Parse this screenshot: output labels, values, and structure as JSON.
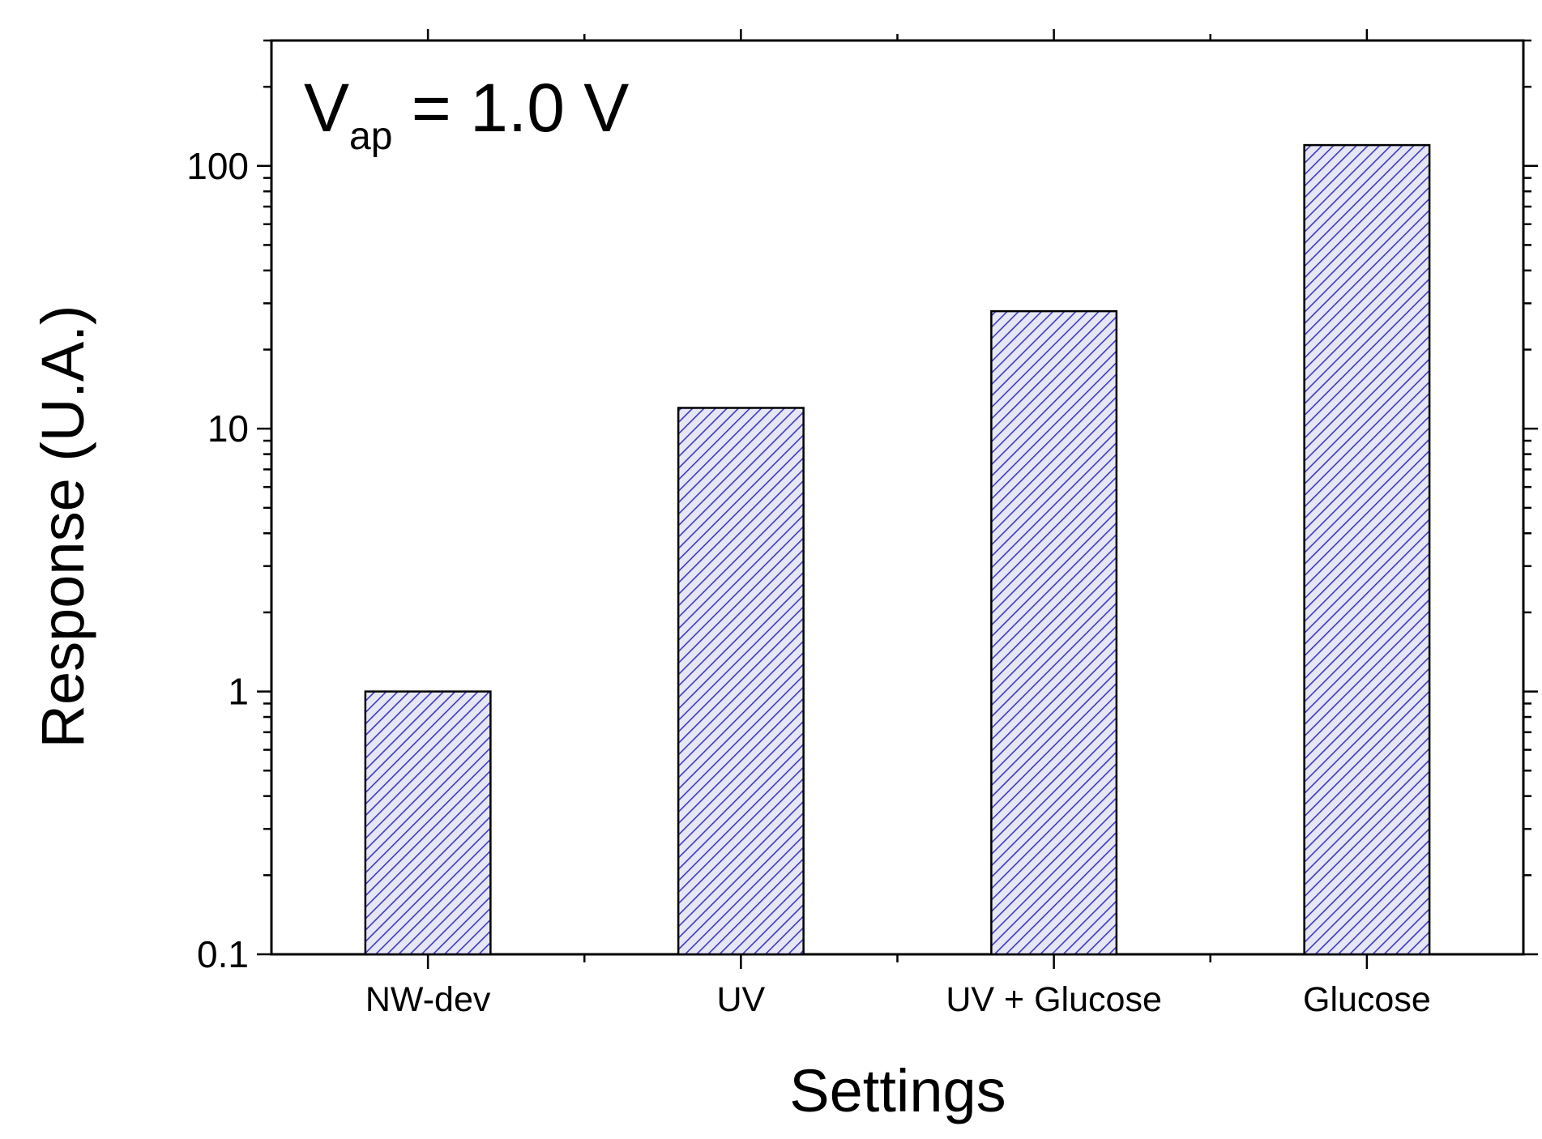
{
  "chart_data": {
    "type": "bar",
    "title": "",
    "xlabel": "Settings",
    "ylabel": "Response (U.A.)",
    "yscale": "log",
    "ylim": [
      0.1,
      300
    ],
    "ytick_values": [
      0.1,
      1,
      10,
      100
    ],
    "ytick_labels": [
      "0.1",
      "1",
      "10",
      "100"
    ],
    "categories": [
      "NW-dev",
      "UV",
      "UV + Glucose",
      "Glucose"
    ],
    "values": [
      1.0,
      12,
      28,
      120
    ],
    "bar_fill": "hatched",
    "colors": {
      "hatch": "#3b3bbd",
      "bar_bg": "#e6e6f5",
      "edge": "#000000"
    },
    "annotation": {
      "main": "V",
      "subscript": "ap",
      "rest": " = 1.0 V"
    }
  }
}
